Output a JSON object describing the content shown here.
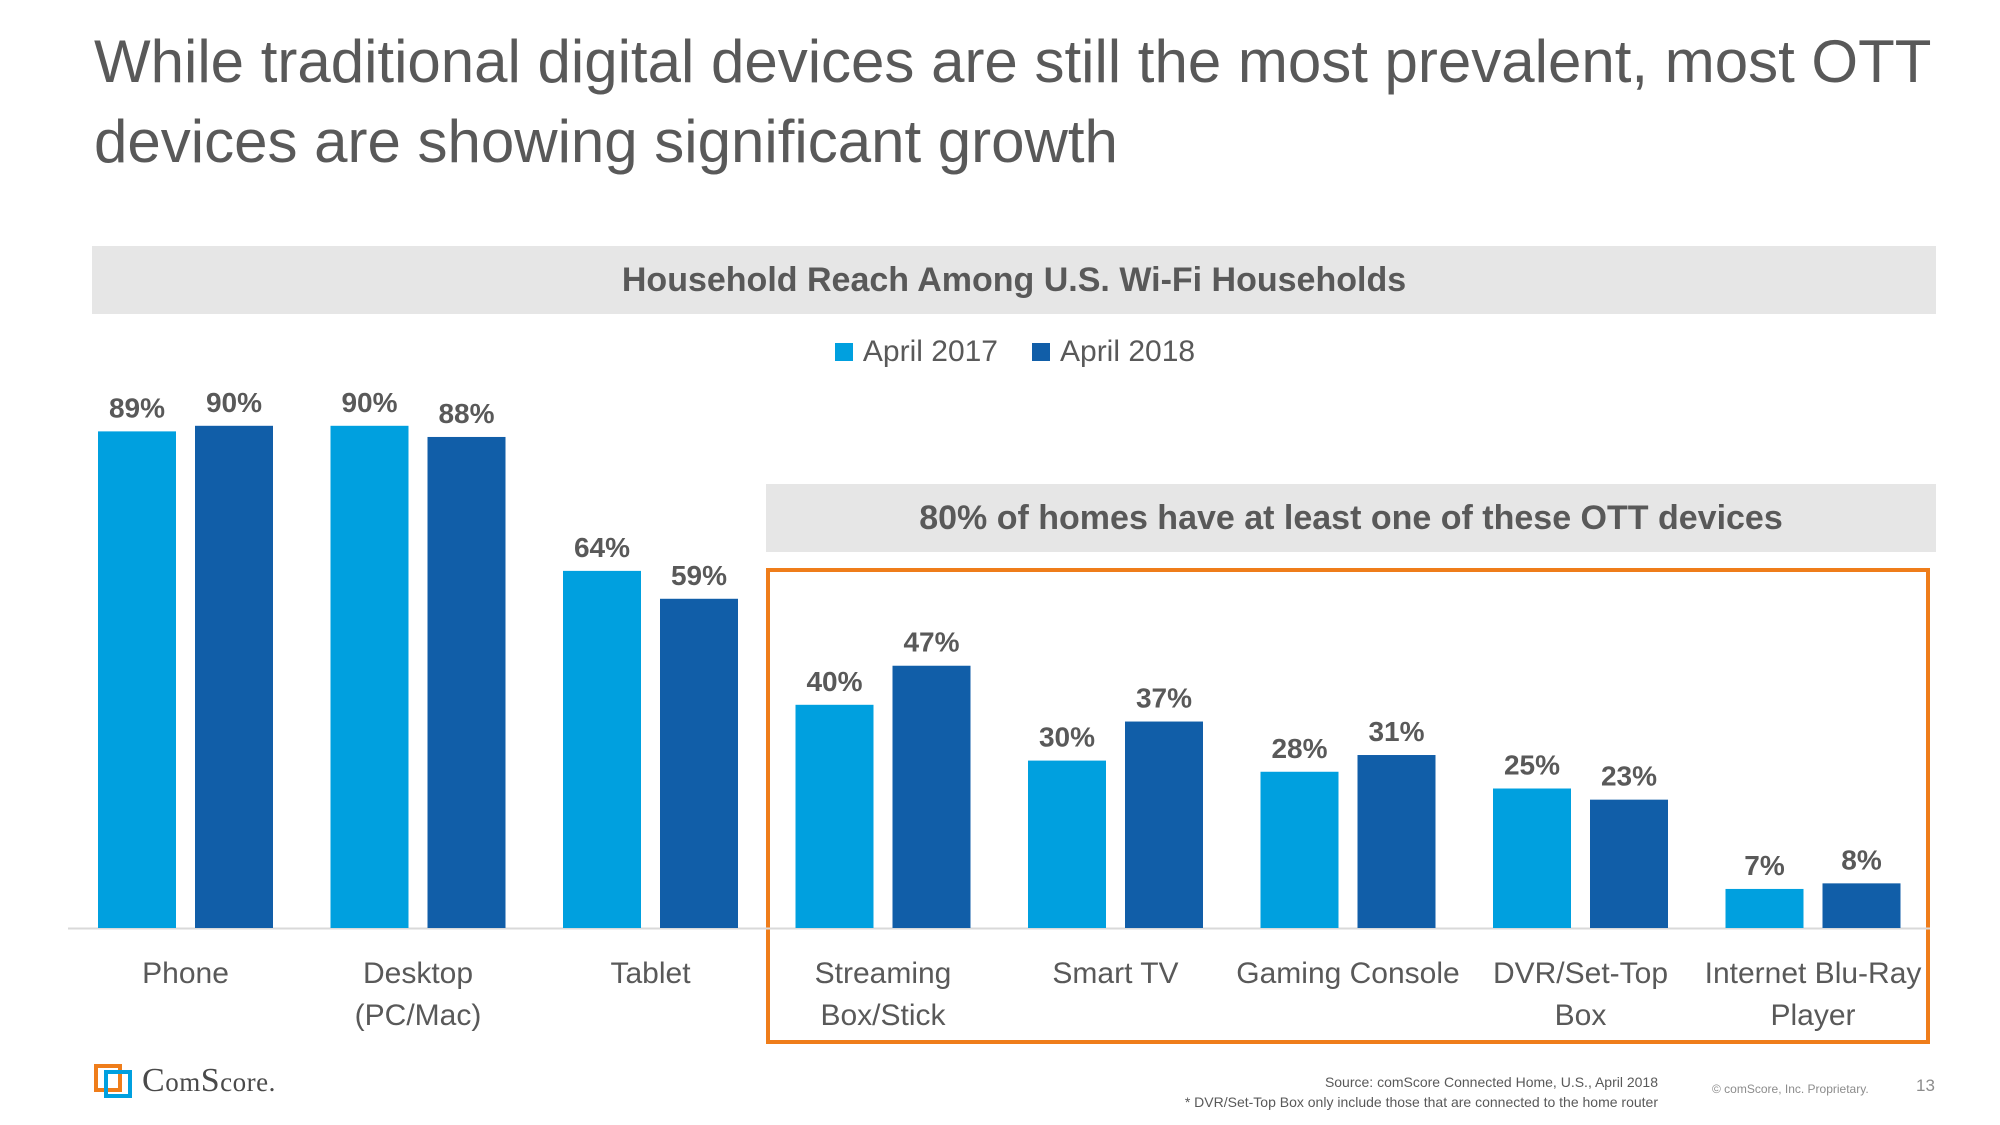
{
  "slide": {
    "title": "While traditional digital devices are still the most prevalent, most OTT devices are showing significant growth",
    "page_number": "13"
  },
  "chart_data": {
    "type": "bar",
    "title": "Household Reach Among U.S. Wi-Fi Households",
    "categories": [
      [
        "Phone"
      ],
      [
        "Desktop",
        "(PC/Mac)"
      ],
      [
        "Tablet"
      ],
      [
        "Streaming",
        "Box/Stick"
      ],
      [
        "Smart TV"
      ],
      [
        "Gaming Console"
      ],
      [
        "DVR/Set-Top",
        "Box"
      ],
      [
        "Internet Blu-Ray",
        "Player"
      ]
    ],
    "series": [
      {
        "name": "April 2017",
        "color": "#00a0df",
        "values": [
          89,
          90,
          64,
          40,
          30,
          28,
          25,
          7
        ]
      },
      {
        "name": "April 2018",
        "color": "#115ea8",
        "values": [
          90,
          88,
          59,
          47,
          37,
          31,
          23,
          8
        ]
      }
    ],
    "value_format": "{v}%",
    "ylim": [
      0,
      100
    ],
    "legend_position": "top-center",
    "grid": false,
    "annotation": {
      "text": "80% of homes have at least one of these OTT devices",
      "highlight_color": "#ef7d1a",
      "highlight_categories": [
        3,
        7
      ]
    }
  },
  "footer": {
    "logo_text_big_c": "C",
    "logo_text_om": "om",
    "logo_text_big_s": "S",
    "logo_text_core": "core",
    "logo_dot": ".",
    "source_line1": "Source: comScore Connected Home, U.S., April 2018",
    "source_line2": "* DVR/Set-Top Box only include those that are connected to the home router",
    "copyright": "© comScore, Inc. Proprietary."
  },
  "colors": {
    "text": "#595959",
    "band": "#e6e6e6",
    "axis": "#d9d9d9",
    "logo_orange": "#ef7d1a",
    "logo_blue": "#00a0df"
  }
}
